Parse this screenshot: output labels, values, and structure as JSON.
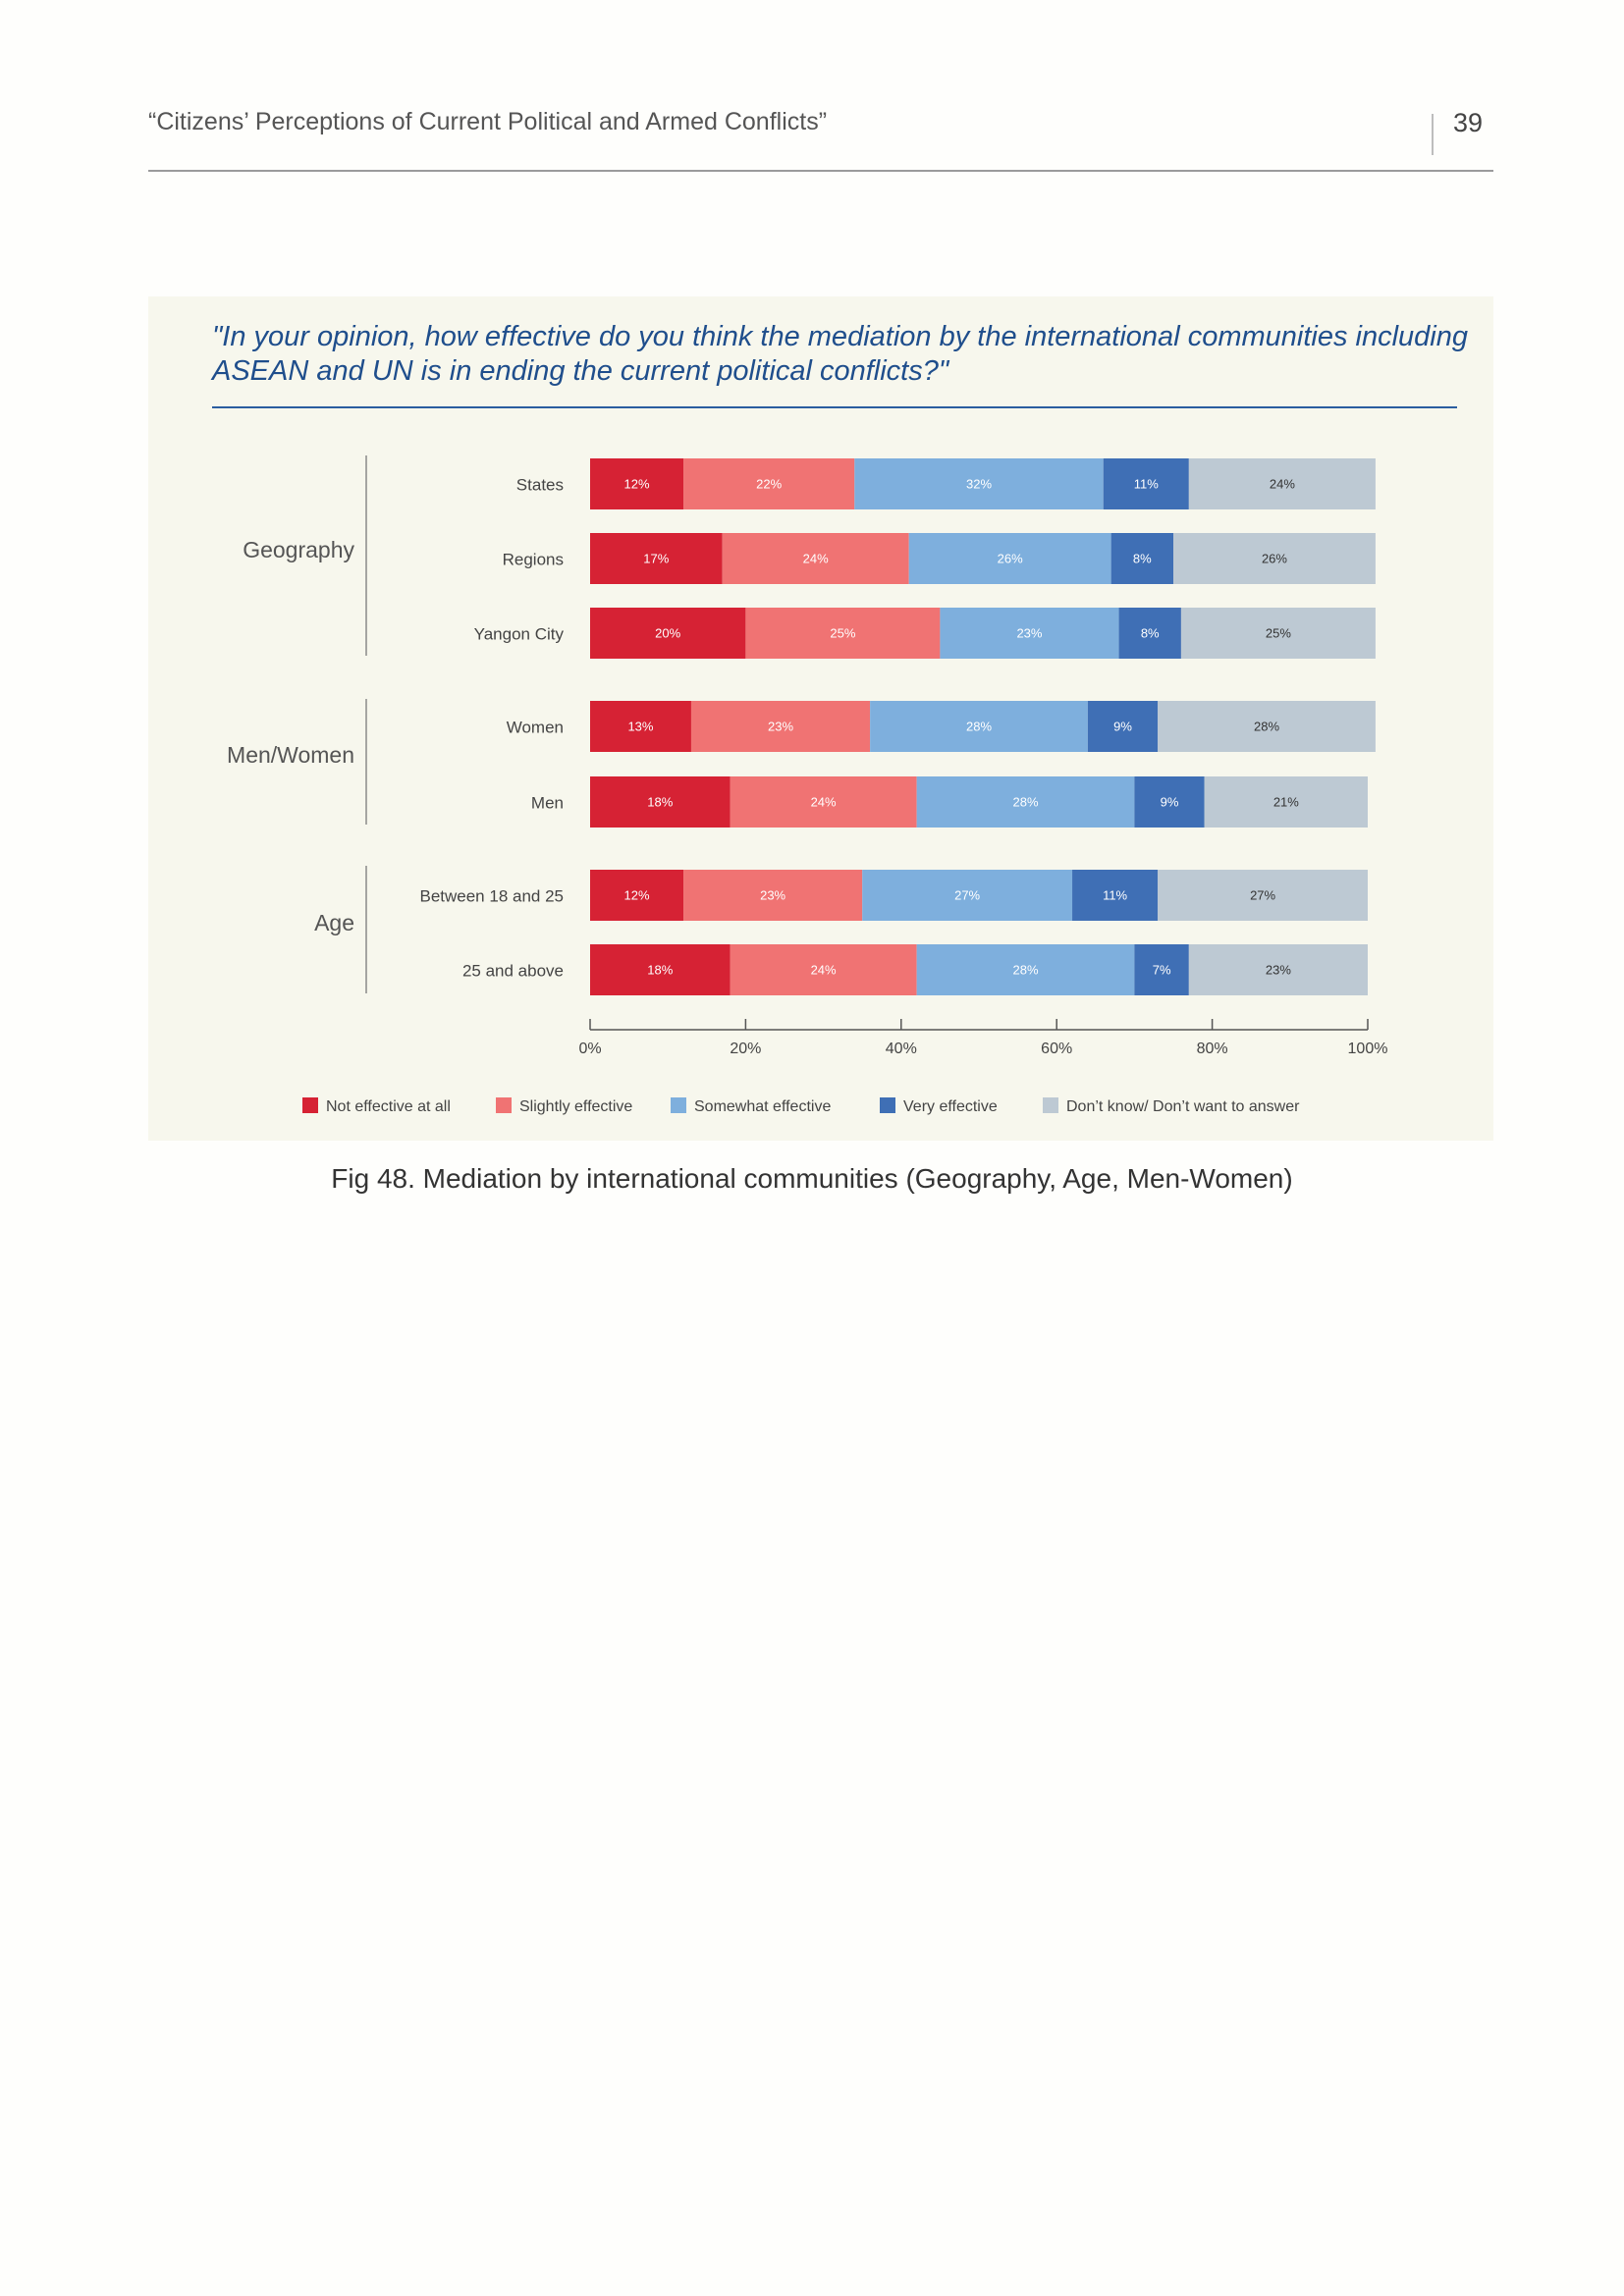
{
  "header": {
    "title": "“Citizens’ Perceptions of Current Political and Armed Conflicts”",
    "page_number": "39"
  },
  "figure": {
    "question": "\"In your opinion, how effective do you think the mediation by the international communities including ASEAN and UN is in ending the current political conflicts?\"",
    "caption": "Fig 48. Mediation by international communities (Geography, Age, Men-Women)"
  },
  "colors": {
    "Not effective at all": "#d62234",
    "Slightly effective": "#f07373",
    "Somewhat effective": "#7eafdd",
    "Very effective": "#3f6fb5",
    "Don't know/ Don't want to answer": "#bdc9d3"
  },
  "chart_data": {
    "type": "bar",
    "orientation": "horizontal",
    "stacked": true,
    "groups": [
      {
        "name": "Geography",
        "categories": [
          "States",
          "Regions",
          "Yangon City"
        ]
      },
      {
        "name": "Men/Women",
        "categories": [
          "Women",
          "Men"
        ]
      },
      {
        "name": "Age",
        "categories": [
          "Between 18 and 25",
          "25 and above"
        ]
      }
    ],
    "categories": [
      "States",
      "Regions",
      "Yangon City",
      "Women",
      "Men",
      "Between 18 and 25",
      "25 and above"
    ],
    "series": [
      {
        "name": "Not effective at all",
        "values": [
          12,
          17,
          20,
          13,
          18,
          12,
          18
        ]
      },
      {
        "name": "Slightly effective",
        "values": [
          22,
          24,
          25,
          23,
          24,
          23,
          24
        ]
      },
      {
        "name": "Somewhat effective",
        "values": [
          32,
          26,
          23,
          28,
          28,
          27,
          28
        ]
      },
      {
        "name": "Very effective",
        "values": [
          11,
          8,
          8,
          9,
          9,
          11,
          7
        ]
      },
      {
        "name": "Don't know/ Don't want to answer",
        "values": [
          24,
          26,
          25,
          28,
          21,
          27,
          23
        ]
      }
    ],
    "legend_labels": [
      "Not effective at all",
      "Slightly effective",
      "Somewhat effective",
      "Very effective",
      "Don’t know/ Don’t want to answer"
    ],
    "xlim": [
      0,
      100
    ],
    "xticks": [
      "0%",
      "20%",
      "40%",
      "60%",
      "80%",
      "100%"
    ],
    "value_suffix": "%",
    "grid": false,
    "legend_position": "bottom"
  }
}
